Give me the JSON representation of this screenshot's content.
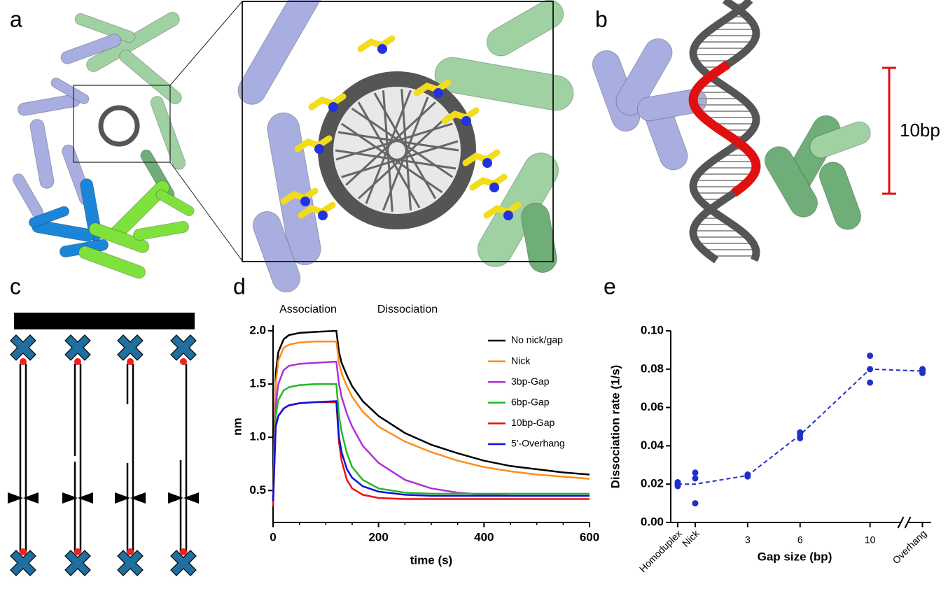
{
  "panel_labels": [
    "a",
    "b",
    "c",
    "d",
    "e"
  ],
  "panel_b": {
    "scale_label": "10bp"
  },
  "chart_data": [
    {
      "type": "line",
      "annotations": [
        "Association",
        "Dissociation"
      ],
      "xlabel": "time (s)",
      "ylabel": "nm",
      "xlim": [
        0,
        600
      ],
      "ylim": [
        0.2,
        2.0
      ],
      "xticks": [
        0,
        200,
        400,
        600
      ],
      "yticks": [
        0.5,
        {
          "value": 1,
          "label": "1.0"
        },
        1.5,
        {
          "value": 2,
          "label": "2.0"
        }
      ],
      "x": [
        0,
        5,
        10,
        20,
        30,
        50,
        80,
        120,
        125,
        130,
        140,
        150,
        170,
        200,
        250,
        300,
        350,
        400,
        450,
        500,
        550,
        600
      ],
      "series": [
        {
          "name": "No nick/gap",
          "color": "#000000",
          "values": [
            0.4,
            1.6,
            1.8,
            1.92,
            1.96,
            1.98,
            1.99,
            2.0,
            1.8,
            1.7,
            1.58,
            1.48,
            1.34,
            1.2,
            1.04,
            0.93,
            0.85,
            0.78,
            0.73,
            0.7,
            0.67,
            0.65
          ]
        },
        {
          "name": "Nick",
          "color": "#ff8c1a",
          "values": [
            0.4,
            1.5,
            1.72,
            1.84,
            1.87,
            1.89,
            1.9,
            1.9,
            1.7,
            1.6,
            1.48,
            1.38,
            1.24,
            1.1,
            0.96,
            0.86,
            0.78,
            0.72,
            0.68,
            0.65,
            0.63,
            0.61
          ]
        },
        {
          "name": "3bp-Gap",
          "color": "#b030d8",
          "values": [
            0.4,
            1.3,
            1.5,
            1.63,
            1.67,
            1.69,
            1.7,
            1.71,
            1.5,
            1.38,
            1.22,
            1.1,
            0.92,
            0.76,
            0.6,
            0.52,
            0.48,
            0.46,
            0.45,
            0.45,
            0.45,
            0.45
          ]
        },
        {
          "name": "6bp-Gap",
          "color": "#22bb22",
          "values": [
            0.4,
            1.2,
            1.35,
            1.44,
            1.47,
            1.49,
            1.5,
            1.5,
            1.2,
            1.05,
            0.85,
            0.72,
            0.6,
            0.52,
            0.48,
            0.47,
            0.47,
            0.47,
            0.47,
            0.47,
            0.47,
            0.47
          ]
        },
        {
          "name": "10bp-Gap",
          "color": "#ee1111",
          "values": [
            0.35,
            1.1,
            1.2,
            1.27,
            1.3,
            1.32,
            1.33,
            1.33,
            0.95,
            0.78,
            0.6,
            0.52,
            0.46,
            0.43,
            0.42,
            0.42,
            0.42,
            0.42,
            0.42,
            0.42,
            0.42,
            0.42
          ]
        },
        {
          "name": "5'-Overhang",
          "color": "#1010dd",
          "values": [
            0.4,
            1.1,
            1.2,
            1.27,
            1.3,
            1.32,
            1.33,
            1.34,
            1.0,
            0.86,
            0.7,
            0.62,
            0.54,
            0.49,
            0.46,
            0.45,
            0.45,
            0.45,
            0.45,
            0.45,
            0.45,
            0.45
          ]
        }
      ]
    },
    {
      "type": "scatter",
      "xlabel": "Gap size (bp)",
      "ylabel": "Dissociation rate (1/s)",
      "xlim": [
        -1.4,
        13.5
      ],
      "ylim": [
        0,
        0.1
      ],
      "x_break": 12,
      "xticks": [
        {
          "value": -1,
          "label": "Homoduplex"
        },
        {
          "value": 0,
          "label": "Nick"
        },
        3,
        6,
        10,
        {
          "value": 13,
          "label": "Overhang"
        }
      ],
      "yticks": [
        {
          "value": 0,
          "label": "0.00"
        },
        {
          "value": 0.02,
          "label": "0.02"
        },
        {
          "value": 0.04,
          "label": "0.04"
        },
        {
          "value": 0.06,
          "label": "0.06"
        },
        {
          "value": 0.08,
          "label": "0.08"
        },
        {
          "value": 0.1,
          "label": "0.10"
        }
      ],
      "color": "#1f2fc9",
      "points": {
        "x": [
          -1,
          -1,
          -1,
          0,
          0,
          0,
          3,
          3,
          6,
          6,
          6,
          10,
          10,
          10,
          13,
          13,
          13
        ],
        "y": [
          0.019,
          0.02,
          0.021,
          0.01,
          0.023,
          0.026,
          0.024,
          0.025,
          0.044,
          0.046,
          0.047,
          0.073,
          0.08,
          0.087,
          0.078,
          0.079,
          0.08
        ]
      },
      "trend": {
        "x": [
          -1,
          0,
          3,
          6,
          10,
          13
        ],
        "values": [
          0.02,
          0.02,
          0.0245,
          0.0457,
          0.08,
          0.079
        ]
      }
    }
  ]
}
